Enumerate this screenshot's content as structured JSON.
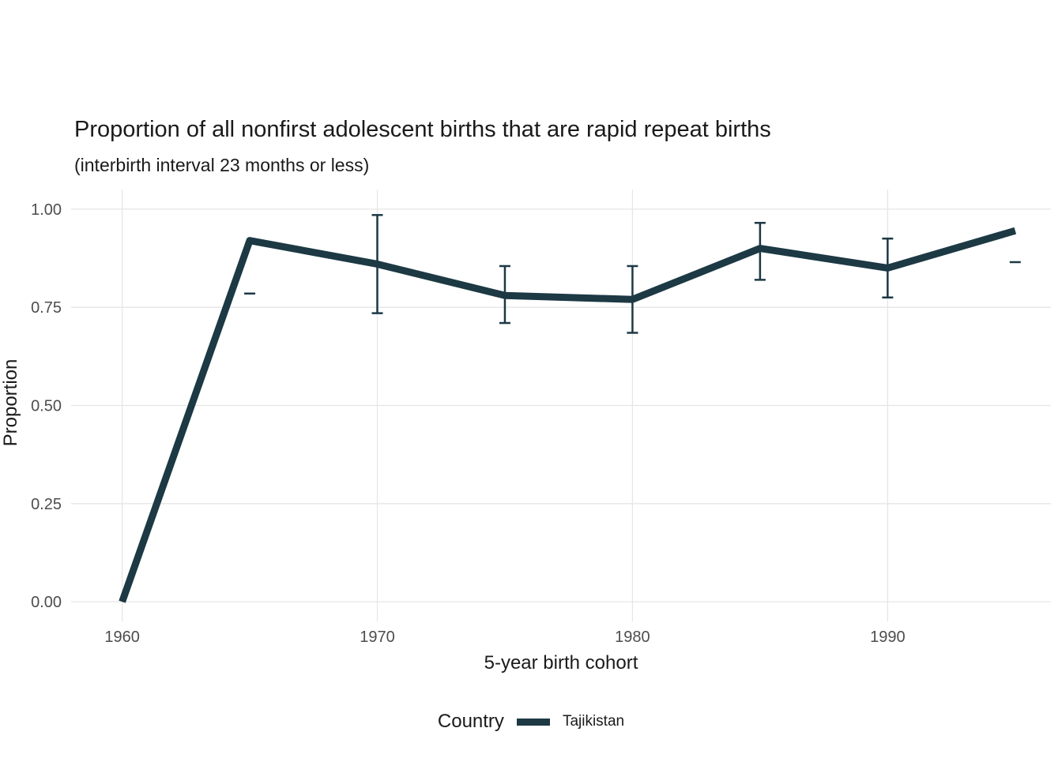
{
  "chart_data": {
    "type": "line",
    "title": "Proportion of all nonfirst adolescent births that are rapid repeat births",
    "subtitle": "(interbirth interval 23 months or less)",
    "xlabel": "5-year birth cohort",
    "ylabel": "Proportion",
    "legend_title": "Country",
    "legend_position": "bottom",
    "grid": true,
    "x": [
      1960,
      1965,
      1970,
      1975,
      1980,
      1985,
      1990,
      1995
    ],
    "series": [
      {
        "name": "Tajikistan",
        "color": "#1c3944",
        "values": [
          0.0,
          0.92,
          0.86,
          0.78,
          0.77,
          0.9,
          0.85,
          0.945
        ]
      }
    ],
    "error_bars": [
      {
        "x": 1965,
        "lower": 0.785,
        "upper": 0.785
      },
      {
        "x": 1970,
        "lower": 0.735,
        "upper": 0.985
      },
      {
        "x": 1975,
        "lower": 0.71,
        "upper": 0.855
      },
      {
        "x": 1980,
        "lower": 0.685,
        "upper": 0.855
      },
      {
        "x": 1985,
        "lower": 0.82,
        "upper": 0.965
      },
      {
        "x": 1990,
        "lower": 0.775,
        "upper": 0.925
      },
      {
        "x": 1995,
        "lower": 0.865,
        "upper": 0.865
      }
    ],
    "xticks": [
      1960,
      1970,
      1980,
      1990
    ],
    "xtick_labels": [
      "1960",
      "1970",
      "1980",
      "1990"
    ],
    "yticks": [
      0,
      0.25,
      0.5,
      0.75,
      1.0
    ],
    "ytick_labels": [
      "0.00",
      "0.25",
      "0.50",
      "0.75",
      "1.00"
    ],
    "xlim": [
      1958,
      1996.4
    ],
    "ylim": [
      -0.05,
      1.05
    ]
  },
  "colors": {
    "grid": "#e6e6e6",
    "tick_label": "#4d4d4d",
    "title": "#1a1a1a"
  }
}
